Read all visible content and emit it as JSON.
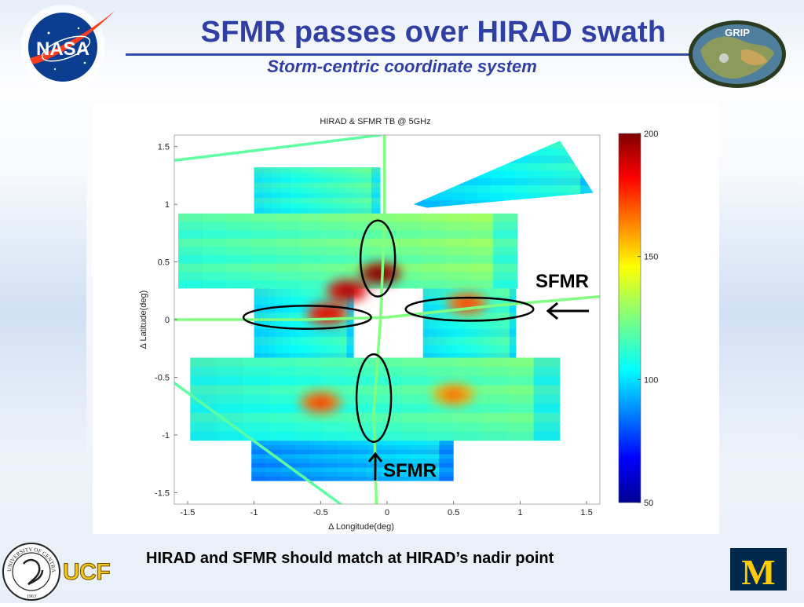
{
  "slide": {
    "title": "SFMR passes over HIRAD swath",
    "subtitle": "Storm-centric coordinate system",
    "caption": "HIRAD and SFMR should match at HIRAD’s nadir point",
    "logos": {
      "nasa": "NASA",
      "grip": "GRIP",
      "ucf": "UCF",
      "ucf_seal_text": "UNIVERSITY OF CENTRAL FLORIDA",
      "ucf_seal_year": "1963",
      "umich": "M"
    },
    "colors": {
      "title": "#2f3fa3",
      "nasa_blue": "#0b3d91",
      "nasa_red": "#fc3d21",
      "ucf_gold": "#f2c318",
      "umich_blue": "#00274c",
      "umich_maize": "#ffcb05"
    }
  },
  "annotations": [
    {
      "text": "SFMR",
      "arrow": "left"
    },
    {
      "text": "SFMR",
      "arrow": "up"
    }
  ],
  "chart_data": {
    "type": "heatmap",
    "title": "HIRAD & SFMR TB @ 5GHz",
    "xlabel": "Δ Longitude(deg)",
    "ylabel": "Δ Latitude(deg)",
    "xlim": [
      -1.6,
      1.6
    ],
    "ylim": [
      -1.6,
      1.6
    ],
    "xticks": [
      -1.5,
      -1,
      -0.5,
      0,
      0.5,
      1,
      1.5
    ],
    "xtick_labels": [
      "-1.5",
      "-1",
      "-0.5",
      "0",
      "0.5",
      "1",
      "1.5"
    ],
    "yticks": [
      1.5,
      1,
      0.5,
      0,
      -0.5,
      -1,
      -1.5
    ],
    "ytick_labels": [
      "1.5",
      "1",
      "0.5",
      "0",
      "-0.5",
      "-1",
      "-1.5"
    ],
    "colorbar": {
      "min": 50,
      "max": 200,
      "ticks": [
        200,
        150,
        100,
        50
      ],
      "tick_labels": [
        "200",
        "150",
        "100",
        "50"
      ],
      "colormap": "jet"
    },
    "grid": false,
    "hirad_swaths": [
      {
        "name": "top",
        "corners": [
          [
            -1.57,
            0.92
          ],
          [
            0.98,
            0.92
          ],
          [
            0.98,
            0.27
          ],
          [
            -1.57,
            0.27
          ]
        ],
        "base_tb": 120
      },
      {
        "name": "top-left-strip",
        "corners": [
          [
            -1.0,
            1.32
          ],
          [
            -0.05,
            1.32
          ],
          [
            -0.05,
            0.92
          ],
          [
            -1.0,
            0.92
          ]
        ],
        "base_tb": 112
      },
      {
        "name": "middle-left",
        "corners": [
          [
            -1.0,
            0.27
          ],
          [
            -0.25,
            0.27
          ],
          [
            -0.25,
            -0.36
          ],
          [
            -1.0,
            -0.36
          ]
        ],
        "base_tb": 108
      },
      {
        "name": "middle-right",
        "corners": [
          [
            0.27,
            0.27
          ],
          [
            0.97,
            0.27
          ],
          [
            0.97,
            -0.36
          ],
          [
            0.27,
            -0.36
          ]
        ],
        "base_tb": 110
      },
      {
        "name": "bottom",
        "corners": [
          [
            -1.48,
            -0.33
          ],
          [
            1.3,
            -0.33
          ],
          [
            1.3,
            -1.05
          ],
          [
            -1.48,
            -1.05
          ]
        ],
        "base_tb": 115
      },
      {
        "name": "bottom-left-tail",
        "corners": [
          [
            -1.02,
            -1.05
          ],
          [
            0.5,
            -1.05
          ],
          [
            0.5,
            -1.4
          ],
          [
            -1.02,
            -1.4
          ]
        ],
        "base_tb": 95
      },
      {
        "name": "top-right-fan",
        "corners": [
          [
            0.2,
            1.0
          ],
          [
            1.3,
            1.55
          ],
          [
            1.55,
            1.1
          ],
          [
            0.3,
            0.97
          ]
        ],
        "base_tb": 105
      }
    ],
    "sfmr_tracks": [
      {
        "name": "north-south",
        "x": [
          -0.02,
          -0.02,
          -0.05,
          -0.1,
          -0.08
        ],
        "y": [
          1.6,
          0.8,
          0.0,
          -0.8,
          -1.6
        ],
        "tb": 125
      },
      {
        "name": "west-east",
        "x": [
          -1.6,
          -0.6,
          0.0,
          0.8,
          1.6
        ],
        "y": [
          0.0,
          0.0,
          0.02,
          0.12,
          0.2
        ],
        "tb": 125
      },
      {
        "name": "top-diagonal",
        "x": [
          -1.6,
          -0.05
        ],
        "y": [
          1.38,
          1.6
        ],
        "tb": 120
      },
      {
        "name": "bottom-diagonal",
        "x": [
          -1.6,
          -0.35
        ],
        "y": [
          -0.55,
          -1.6
        ],
        "tb": 120
      }
    ],
    "hot_features": [
      {
        "x": -0.05,
        "y": 0.4,
        "tb": 195
      },
      {
        "x": -0.3,
        "y": 0.25,
        "tb": 185
      },
      {
        "x": -0.45,
        "y": 0.05,
        "tb": 178
      },
      {
        "x": 0.6,
        "y": 0.14,
        "tb": 165
      },
      {
        "x": -0.5,
        "y": -0.72,
        "tb": 165
      },
      {
        "x": 0.5,
        "y": -0.65,
        "tb": 158
      }
    ],
    "ellipses": [
      {
        "center": [
          -0.07,
          0.53
        ],
        "rx": 0.13,
        "ry": 0.33
      },
      {
        "center": [
          -0.6,
          0.02
        ],
        "rx": 0.48,
        "ry": 0.1
      },
      {
        "center": [
          0.62,
          0.09
        ],
        "rx": 0.48,
        "ry": 0.1
      },
      {
        "center": [
          -0.1,
          -0.68
        ],
        "rx": 0.13,
        "ry": 0.38
      }
    ]
  }
}
